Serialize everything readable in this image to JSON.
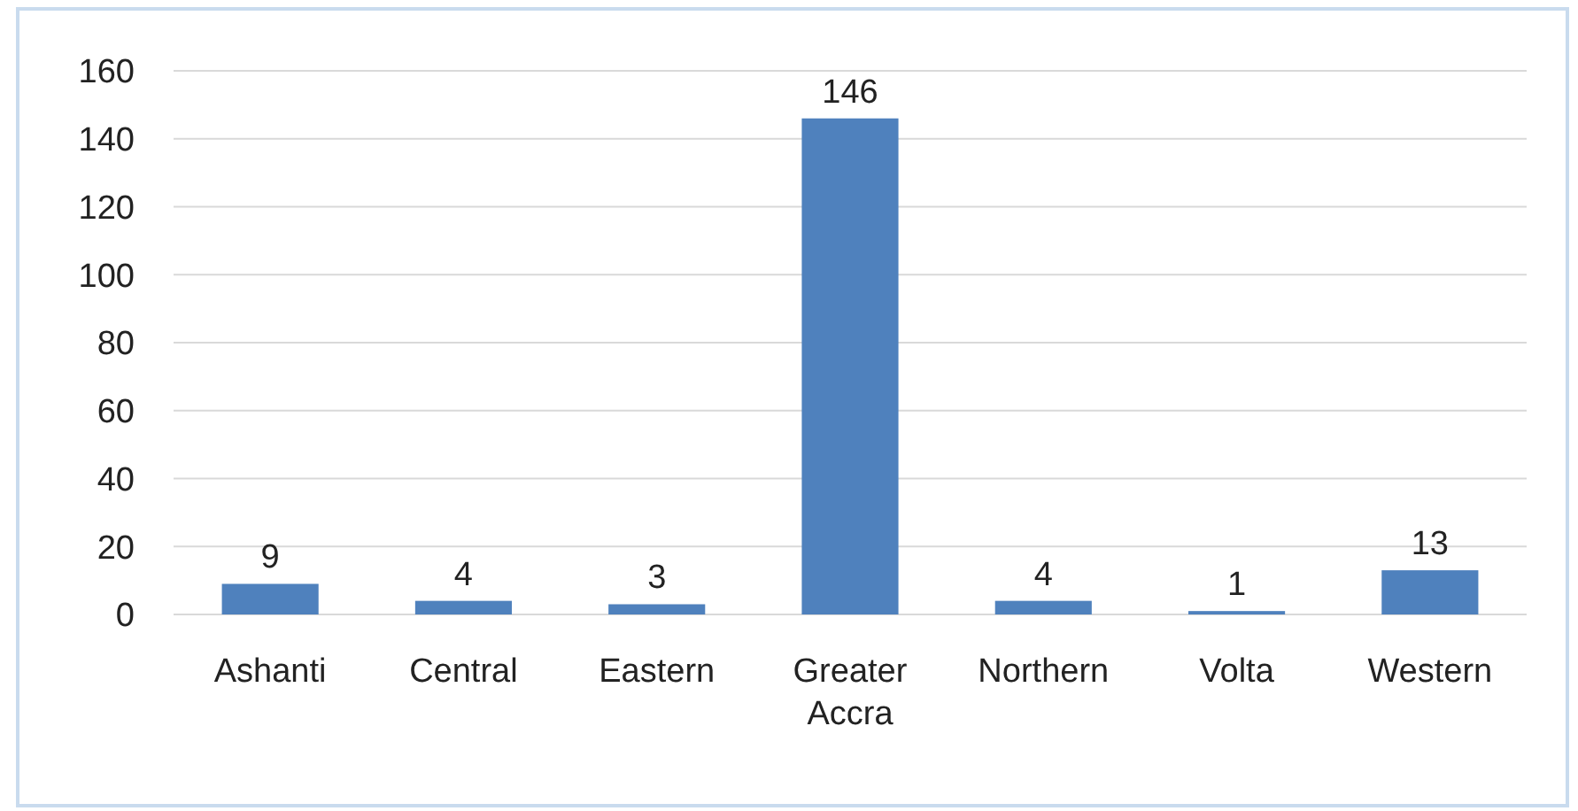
{
  "chart_data": {
    "type": "bar",
    "categories": [
      "Ashanti",
      "Central",
      "Eastern",
      "Greater Accra",
      "Northern",
      "Volta",
      "Western"
    ],
    "values": [
      9,
      4,
      3,
      146,
      4,
      1,
      13
    ],
    "color": "#4f81bd",
    "ylim": [
      0,
      160
    ],
    "yticks": [
      0,
      20,
      40,
      60,
      80,
      100,
      120,
      140,
      160
    ],
    "grid": "y",
    "data_labels": true
  }
}
